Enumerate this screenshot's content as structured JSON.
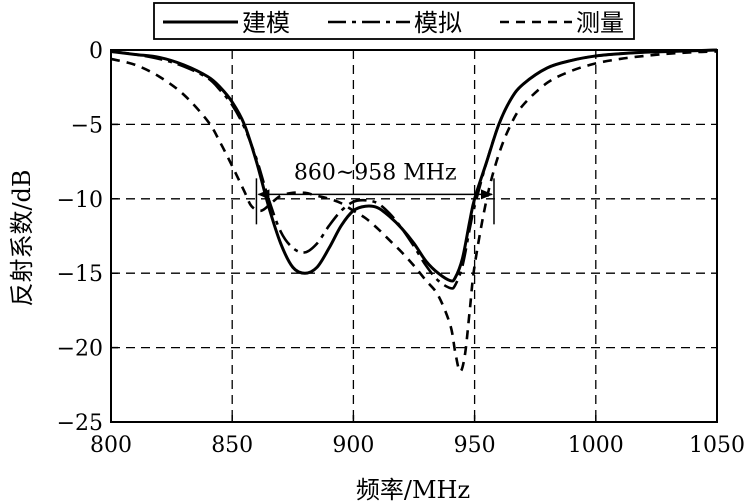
{
  "chart_data": {
    "type": "line",
    "title": "",
    "xlabel": "频率/MHz",
    "ylabel": "反射系数/dB",
    "xlim": [
      800,
      1050
    ],
    "ylim": [
      -25,
      0
    ],
    "xticks": [
      800,
      850,
      900,
      950,
      1000,
      1050
    ],
    "yticks": [
      0,
      -5,
      -10,
      -15,
      -20,
      -25
    ],
    "xtick_labels": [
      "800",
      "850",
      "900",
      "950",
      "1000",
      "1050"
    ],
    "ytick_labels": [
      "0",
      "−5",
      "−10",
      "−15",
      "−20",
      "−25"
    ],
    "grid": true,
    "legend_position": "top-center",
    "annotation": {
      "text": "860~958 MHz",
      "x_start": 860,
      "x_end": 958,
      "y": -9.7
    },
    "series": [
      {
        "name": "建模",
        "style": "solid",
        "x": [
          800,
          810,
          820,
          830,
          840,
          845,
          850,
          855,
          860,
          865,
          870,
          875,
          880,
          885,
          890,
          895,
          900,
          905,
          910,
          915,
          920,
          925,
          930,
          935,
          940,
          942,
          945,
          948,
          950,
          955,
          960,
          965,
          970,
          980,
          990,
          1000,
          1010,
          1020,
          1030,
          1040,
          1050
        ],
        "y": [
          -0.1,
          -0.3,
          -0.5,
          -1.0,
          -1.8,
          -2.5,
          -3.5,
          -5.0,
          -7.5,
          -10.5,
          -13.0,
          -14.6,
          -15.0,
          -14.6,
          -13.3,
          -11.8,
          -10.8,
          -10.5,
          -10.6,
          -11.2,
          -12.0,
          -13.0,
          -14.2,
          -15.0,
          -15.5,
          -15.3,
          -14.0,
          -11.5,
          -10.0,
          -7.5,
          -5.0,
          -3.3,
          -2.3,
          -1.2,
          -0.7,
          -0.4,
          -0.25,
          -0.15,
          -0.1,
          -0.05,
          0
        ]
      },
      {
        "name": "模拟",
        "style": "dash-dot",
        "x": [
          800,
          810,
          820,
          830,
          840,
          845,
          850,
          855,
          860,
          865,
          870,
          875,
          880,
          885,
          890,
          895,
          900,
          905,
          910,
          915,
          920,
          925,
          930,
          935,
          940,
          942,
          945,
          948,
          950,
          955,
          960,
          965,
          970,
          980,
          990,
          1000,
          1010,
          1020,
          1030,
          1040,
          1050
        ],
        "y": [
          -0.1,
          -0.3,
          -0.6,
          -1.1,
          -1.9,
          -2.7,
          -3.7,
          -5.2,
          -7.3,
          -10.0,
          -12.2,
          -13.3,
          -13.6,
          -13.0,
          -11.8,
          -10.8,
          -10.2,
          -10.1,
          -10.3,
          -11.0,
          -12.0,
          -13.2,
          -14.5,
          -15.5,
          -16.0,
          -15.8,
          -14.5,
          -12.0,
          -10.5,
          -7.5,
          -5.0,
          -3.3,
          -2.3,
          -1.2,
          -0.7,
          -0.4,
          -0.25,
          -0.15,
          -0.1,
          -0.05,
          0
        ]
      },
      {
        "name": "测量",
        "style": "dashed",
        "x": [
          800,
          810,
          820,
          830,
          840,
          845,
          850,
          855,
          858,
          862,
          866,
          870,
          875,
          880,
          885,
          890,
          895,
          900,
          905,
          910,
          915,
          920,
          925,
          930,
          935,
          940,
          942,
          944,
          946,
          948,
          950,
          955,
          960,
          965,
          970,
          980,
          990,
          1000,
          1010,
          1020,
          1030,
          1040,
          1050
        ],
        "y": [
          -0.6,
          -1.0,
          -1.8,
          -3.0,
          -4.8,
          -6.2,
          -7.8,
          -9.5,
          -10.5,
          -10.8,
          -10.3,
          -9.8,
          -9.6,
          -9.6,
          -9.8,
          -10.0,
          -10.3,
          -10.8,
          -11.3,
          -12.0,
          -12.8,
          -13.6,
          -14.5,
          -15.5,
          -16.5,
          -18.5,
          -20.3,
          -21.6,
          -20.5,
          -17.5,
          -14.5,
          -10.0,
          -7.0,
          -5.0,
          -3.7,
          -2.2,
          -1.4,
          -0.9,
          -0.6,
          -0.4,
          -0.25,
          -0.15,
          -0.1
        ]
      }
    ]
  }
}
